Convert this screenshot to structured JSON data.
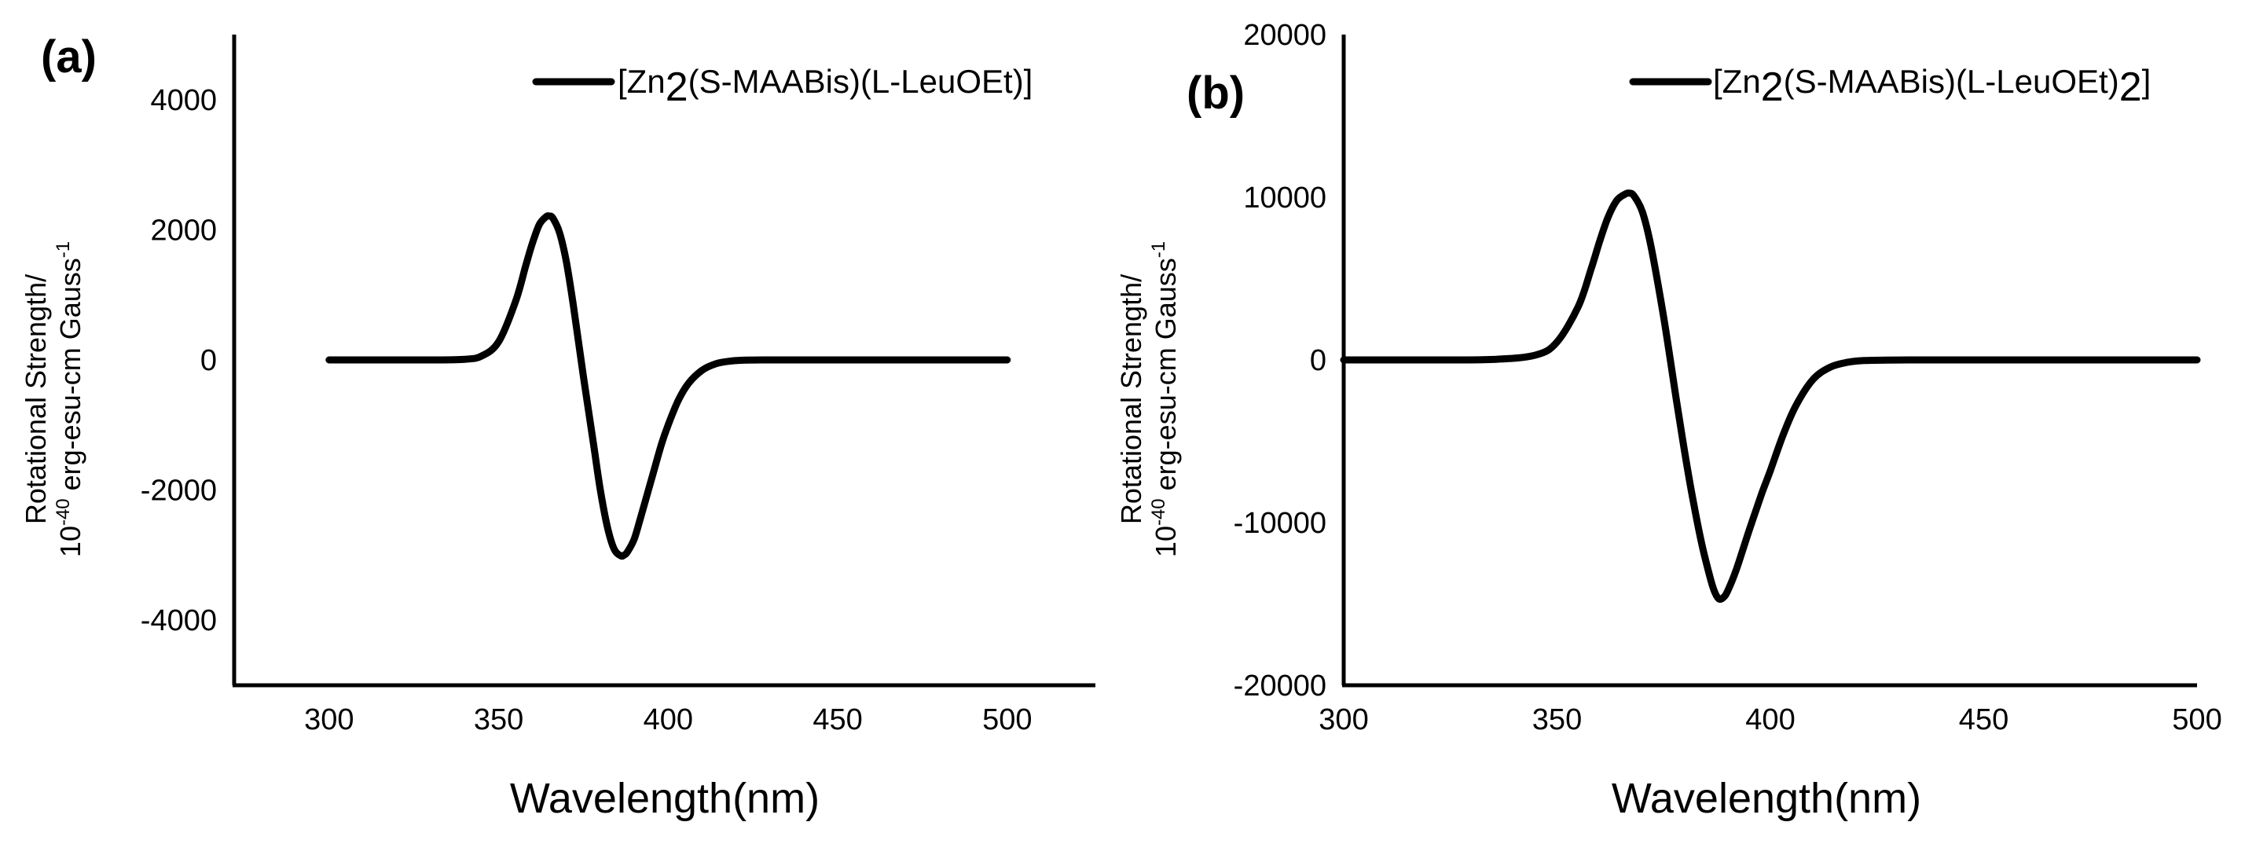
{
  "chart_data": [
    {
      "panel_label": "(a)",
      "type": "line",
      "xlabel": "Wavelength(nm)",
      "ylabel_line1": "Rotational Strength/",
      "ylabel_line2_prefix": "10",
      "ylabel_line2_exp": "-40",
      "ylabel_line2_main": " erg-esu-cm Gauss",
      "ylabel_line2_unit_exp": "-1",
      "xlim": [
        272,
        526
      ],
      "ylim": [
        -5000,
        5000
      ],
      "xticks": [
        300,
        350,
        400,
        450,
        500
      ],
      "yticks": [
        4000,
        2000,
        0,
        -2000,
        -4000
      ],
      "xtick_labels": [
        "300",
        "350",
        "400",
        "450",
        "500"
      ],
      "ytick_labels": [
        "4000",
        "2000",
        "0",
        "-2000",
        "-4000"
      ],
      "grid": false,
      "legend_position": "top-right",
      "series": [
        {
          "legend_pre": "[Zn",
          "legend_sub": "2",
          "legend_mid": "(S-MAABis)(L-LeuOEt)]",
          "legend_sub2": "",
          "legend_post": "",
          "color": "#000000",
          "x": [
            300,
            320,
            330,
            340,
            345,
            350,
            355,
            358,
            360,
            362,
            364,
            365,
            366,
            368,
            370,
            372,
            375,
            378,
            380,
            382,
            384,
            386,
            387,
            388,
            390,
            392,
            395,
            398,
            400,
            403,
            406,
            410,
            414,
            418,
            422,
            430,
            440,
            460,
            480,
            500
          ],
          "y": [
            0,
            0,
            0,
            10,
            60,
            280,
            900,
            1450,
            1800,
            2080,
            2200,
            2210,
            2180,
            1950,
            1500,
            850,
            -250,
            -1300,
            -2000,
            -2550,
            -2900,
            -3010,
            -3000,
            -2950,
            -2750,
            -2400,
            -1850,
            -1300,
            -1000,
            -620,
            -360,
            -160,
            -60,
            -20,
            -5,
            0,
            0,
            0,
            0,
            0
          ]
        }
      ]
    },
    {
      "panel_label": "(b)",
      "type": "line",
      "xlabel": "Wavelength(nm)",
      "ylabel_line1": "Rotational Strength/",
      "ylabel_line2_prefix": "10",
      "ylabel_line2_exp": "-40",
      "ylabel_line2_main": " erg-esu-cm Gauss",
      "ylabel_line2_unit_exp": "-1",
      "xlim": [
        300,
        500
      ],
      "ylim": [
        -20000,
        20000
      ],
      "xticks": [
        300,
        350,
        400,
        450,
        500
      ],
      "yticks": [
        20000,
        10000,
        0,
        -10000,
        -20000
      ],
      "xtick_labels": [
        "300",
        "350",
        "400",
        "450",
        "500"
      ],
      "ytick_labels": [
        "20000",
        "10000",
        "0",
        "-10000",
        "-20000"
      ],
      "grid": false,
      "legend_position": "top-right",
      "series": [
        {
          "legend_pre": "[Zn",
          "legend_sub": "2",
          "legend_mid": "(S-MAABis)(L-LeuOEt)",
          "legend_sub2": "2",
          "legend_post": "]",
          "color": "#000000",
          "x": [
            300,
            320,
            335,
            345,
            350,
            355,
            358,
            360,
            362,
            364,
            366,
            367,
            368,
            370,
            372,
            375,
            378,
            380,
            382,
            384,
            386,
            387,
            388,
            389,
            390,
            392,
            395,
            398,
            400,
            403,
            406,
            410,
            414,
            418,
            422,
            430,
            440,
            460,
            480,
            500
          ],
          "y": [
            0,
            0,
            30,
            300,
            1100,
            3300,
            5600,
            7300,
            8800,
            9800,
            10200,
            10250,
            10100,
            9100,
            7000,
            2600,
            -2500,
            -5800,
            -8800,
            -11400,
            -13500,
            -14300,
            -14700,
            -14600,
            -14200,
            -12900,
            -10500,
            -8200,
            -6800,
            -4600,
            -2800,
            -1200,
            -450,
            -150,
            -40,
            -5,
            0,
            0,
            0,
            0
          ]
        }
      ]
    }
  ]
}
